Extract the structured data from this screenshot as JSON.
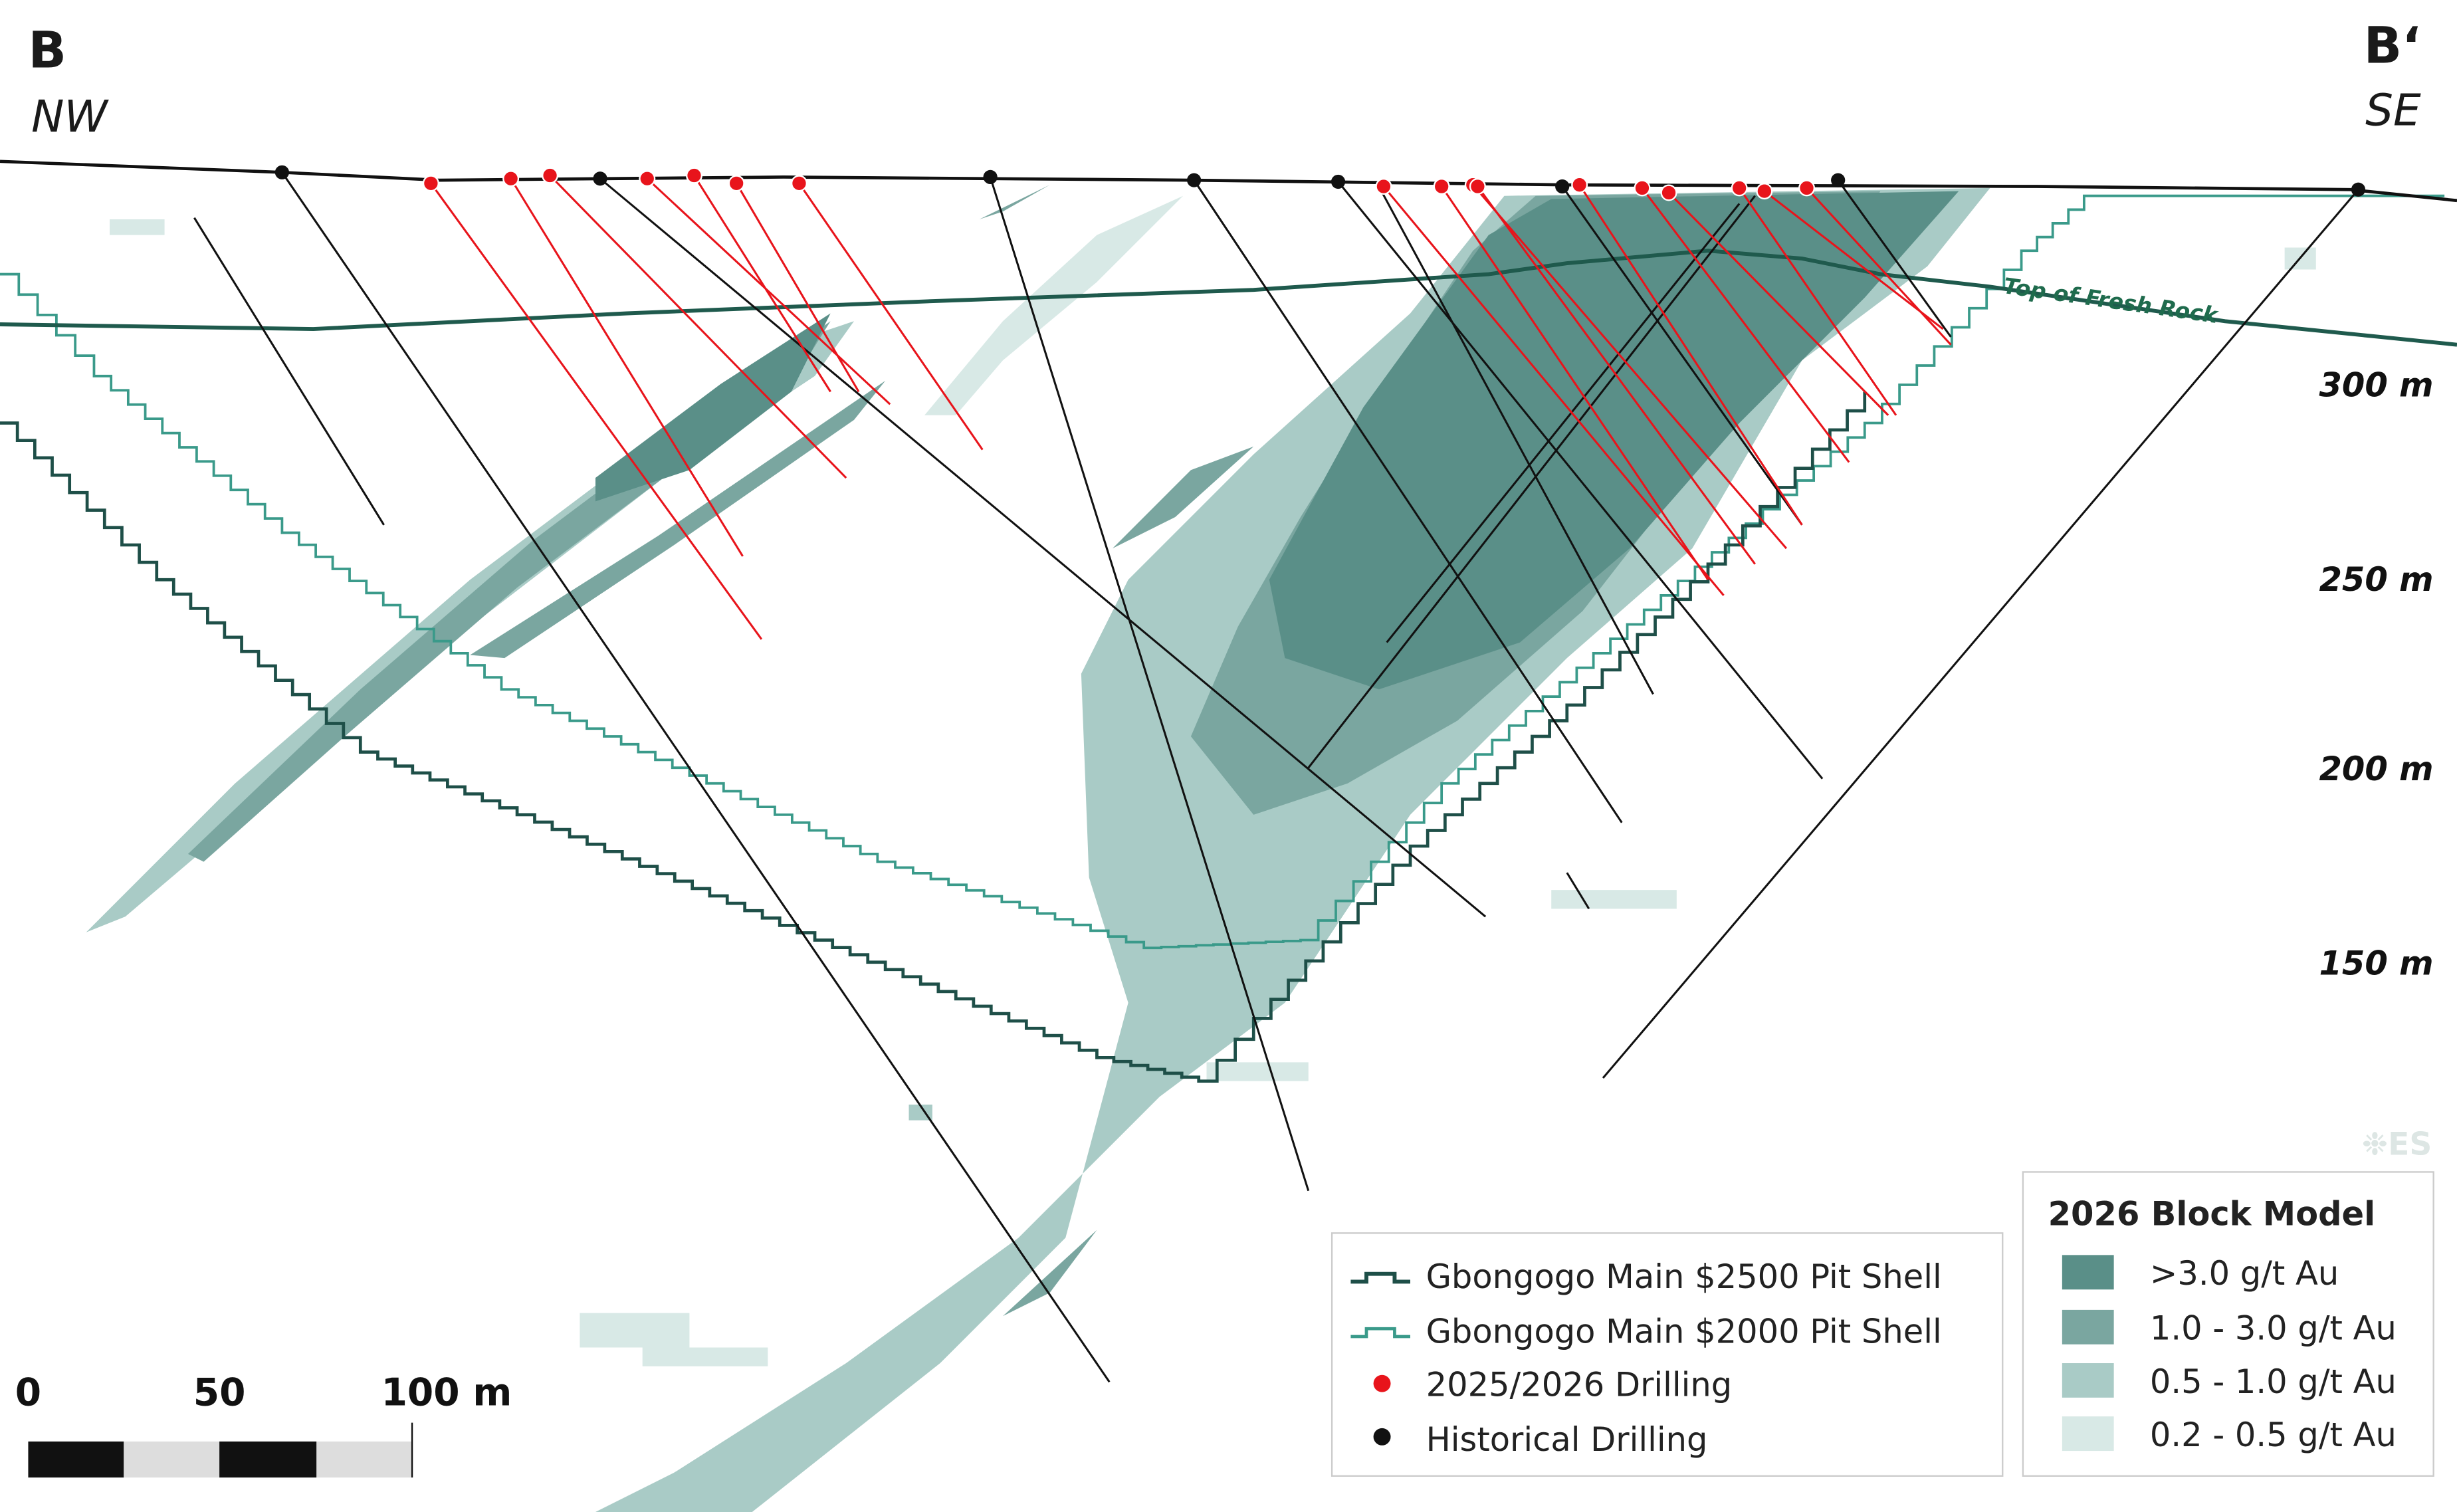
{
  "section": {
    "left_label": "B",
    "left_direction": "NW",
    "right_label": "B‘",
    "right_direction": "SE"
  },
  "elevation_labels": [
    "300 m",
    "250 m",
    "200 m",
    "150 m"
  ],
  "annotation": "Top of Fresh Rock",
  "watermark": "❉ES",
  "legend": {
    "items": [
      "Gbongogo Main $2500 Pit Shell",
      "Gbongogo Main $2000 Pit Shell",
      "2025/2026 Drilling",
      "Historical Drilling"
    ]
  },
  "block_model_legend": {
    "title": "2026 Block Model",
    "items": [
      ">3.0 g/t Au",
      "1.0 - 3.0 g/t Au",
      "0.5 - 1.0 g/t Au",
      "0.2 - 0.5 g/t Au"
    ]
  },
  "scale_bar": {
    "labels": [
      "0",
      "50",
      "100 m"
    ]
  }
}
